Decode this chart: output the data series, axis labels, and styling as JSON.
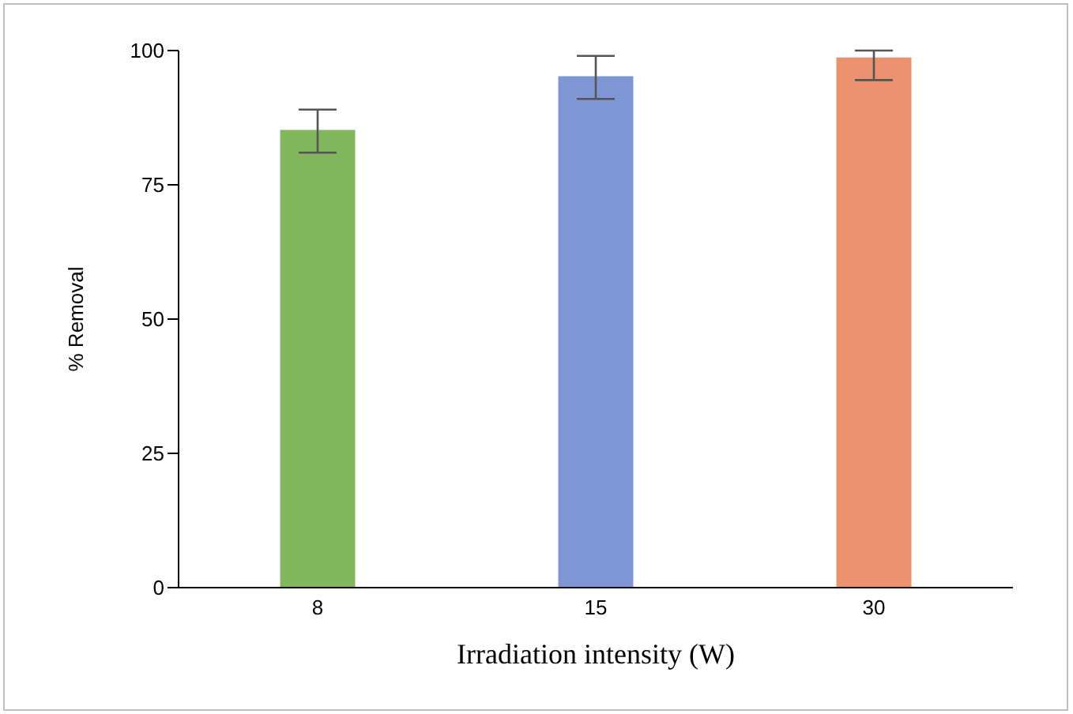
{
  "chart_data": {
    "type": "bar",
    "categories": [
      "8",
      "15",
      "30"
    ],
    "values": [
      85,
      95,
      98.5
    ],
    "colors": [
      "#a9d18e",
      "#9fb1de",
      "#f5b39a"
    ],
    "errors": [
      [
        81,
        89
      ],
      [
        91,
        99
      ],
      [
        94.5,
        100
      ]
    ],
    "xlabel": "Irradiation intensity (W)",
    "ylabel": "% Removal",
    "ylim": [
      0,
      100
    ],
    "yticks": [
      0,
      25,
      50,
      75,
      100
    ],
    "grid": false,
    "legend": false
  }
}
